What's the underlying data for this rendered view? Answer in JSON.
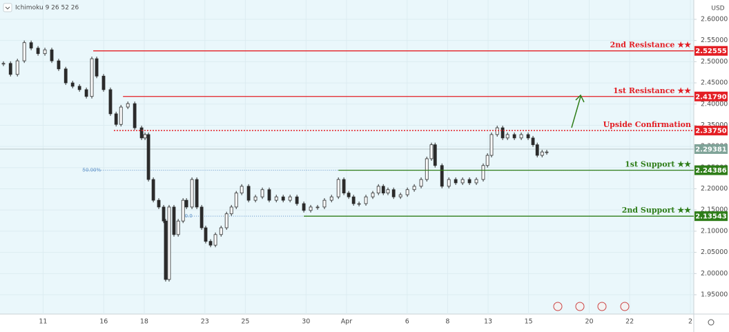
{
  "header": {
    "indicator": "Ichimoku 9 26 52 26",
    "currency": "USD"
  },
  "chart_data": {
    "type": "candlestick",
    "x": [
      -0.96,
      -0.61,
      -0.27,
      0.07,
      0.41,
      0.75,
      1.09,
      1.43,
      1.77,
      2.12,
      2.46,
      2.8,
      3.14,
      3.41,
      3.65,
      3.99,
      4.33,
      4.61,
      4.85,
      5.19,
      5.53,
      5.87,
      6.04,
      6.21,
      6.45,
      6.72,
      6.96,
      7.06,
      7.23,
      7.47,
      7.68,
      7.92,
      8.09,
      8.36,
      8.6,
      8.84,
      9.04,
      9.28,
      9.52,
      9.8,
      10.07,
      10.31,
      10.55,
      10.82,
      11.16,
      11.5,
      11.84,
      12.18,
      12.53,
      12.87,
      13.21,
      13.55,
      13.89,
      14.23,
      14.57,
      14.91,
      15.26,
      15.6,
      15.87,
      16.11,
      16.35,
      16.62,
      16.96,
      17.3,
      17.58,
      17.82,
      18.05,
      18.33,
      18.67,
      19.01,
      19.35,
      19.69,
      19.97,
      20.2,
      20.38,
      20.72,
      21.06,
      21.4,
      21.74,
      22.08,
      22.42,
      22.76,
      22.97,
      23.17,
      23.45,
      23.72,
      23.96,
      24.3,
      24.64,
      24.98,
      25.22,
      25.43,
      25.67,
      25.9
    ],
    "values": [
      2.496,
      2.47,
      2.502,
      2.545,
      2.532,
      2.519,
      2.528,
      2.502,
      2.483,
      2.45,
      2.442,
      2.434,
      2.418,
      2.507,
      2.466,
      2.434,
      2.377,
      2.352,
      2.393,
      2.401,
      2.344,
      2.32,
      2.328,
      2.222,
      2.173,
      2.157,
      2.124,
      1.986,
      2.157,
      2.092,
      2.124,
      2.173,
      2.157,
      2.222,
      2.157,
      2.108,
      2.076,
      2.067,
      2.092,
      2.108,
      2.141,
      2.157,
      2.19,
      2.206,
      2.173,
      2.181,
      2.198,
      2.173,
      2.181,
      2.173,
      2.181,
      2.165,
      2.149,
      2.157,
      2.157,
      2.173,
      2.181,
      2.222,
      2.19,
      2.181,
      2.165,
      2.165,
      2.181,
      2.19,
      2.206,
      2.19,
      2.198,
      2.181,
      2.186,
      2.198,
      2.206,
      2.222,
      2.271,
      2.304,
      2.255,
      2.206,
      2.222,
      2.214,
      2.222,
      2.214,
      2.222,
      2.255,
      2.279,
      2.328,
      2.344,
      2.32,
      2.328,
      2.32,
      2.328,
      2.32,
      2.304,
      2.279,
      2.287,
      2.287
    ],
    "up_color": "#ffffff",
    "down_color": "#2b2b2b",
    "xlim": [
      -1.13,
      33.17
    ],
    "ylim": [
      1.9044,
      2.6456
    ],
    "yticks": [
      {
        "value": 2.6,
        "label": "2.60000"
      },
      {
        "value": 2.55,
        "label": "2.55000"
      },
      {
        "value": 2.5,
        "label": "2.50000"
      },
      {
        "value": 2.45,
        "label": "2.45000"
      },
      {
        "value": 2.4,
        "label": "2.40000"
      },
      {
        "value": 2.35,
        "label": "2.35000"
      },
      {
        "value": 2.3,
        "label": "2.30000"
      },
      {
        "value": 2.25,
        "label": "2.25000"
      },
      {
        "value": 2.2,
        "label": "2.20000"
      },
      {
        "value": 2.15,
        "label": "2.15000"
      },
      {
        "value": 2.1,
        "label": "2.10000"
      },
      {
        "value": 2.05,
        "label": "2.05000"
      },
      {
        "value": 2.0,
        "label": "2.00000"
      },
      {
        "value": 1.95,
        "label": "1.95000"
      }
    ],
    "xticks": [
      {
        "value": 1,
        "label": "11"
      },
      {
        "value": 4,
        "label": "16"
      },
      {
        "value": 6,
        "label": "18"
      },
      {
        "value": 9,
        "label": "23"
      },
      {
        "value": 11,
        "label": "25"
      },
      {
        "value": 14,
        "label": "30"
      },
      {
        "value": 16,
        "label": "Apr"
      },
      {
        "value": 19,
        "label": "6"
      },
      {
        "value": 21,
        "label": "8"
      },
      {
        "value": 23,
        "label": "13"
      },
      {
        "value": 25,
        "label": "15"
      },
      {
        "value": 28,
        "label": "20"
      },
      {
        "value": 30,
        "label": "22"
      },
      {
        "value": 33,
        "label": "2"
      }
    ],
    "grid": true,
    "levels": [
      {
        "label": "2nd Resistance ★★",
        "value": 2.52555,
        "from": 3.48,
        "color": "#e31e24",
        "style": "solid"
      },
      {
        "label": "1st Resistance ★★",
        "value": 2.4179,
        "value_label": "2.41790",
        "from": 4.95,
        "color": "#e31e24",
        "style": "solid"
      },
      {
        "label": "Upside Confirmation",
        "value": 2.3375,
        "value_label": "2.33750",
        "from": 4.5,
        "color": "#e31e24",
        "style": "dotted"
      },
      {
        "label": "1st Support ★★",
        "value": 2.24386,
        "from": 15.6,
        "color": "#2e7d18",
        "style": "solid"
      },
      {
        "label": "2nd Support ★★",
        "value": 2.13543,
        "from": 13.89,
        "color": "#2e7d18",
        "style": "solid"
      }
    ],
    "current_price": {
      "value": 2.29381,
      "color": "#7fa398"
    },
    "fib_levels": [
      {
        "label": "50.00%",
        "value": 2.24386,
        "from": 2.95,
        "color": "#5b8fc7"
      },
      {
        "label": "50.0",
        "value": 2.13543,
        "from": 7.85,
        "color": "#5b8fc7"
      }
    ]
  }
}
